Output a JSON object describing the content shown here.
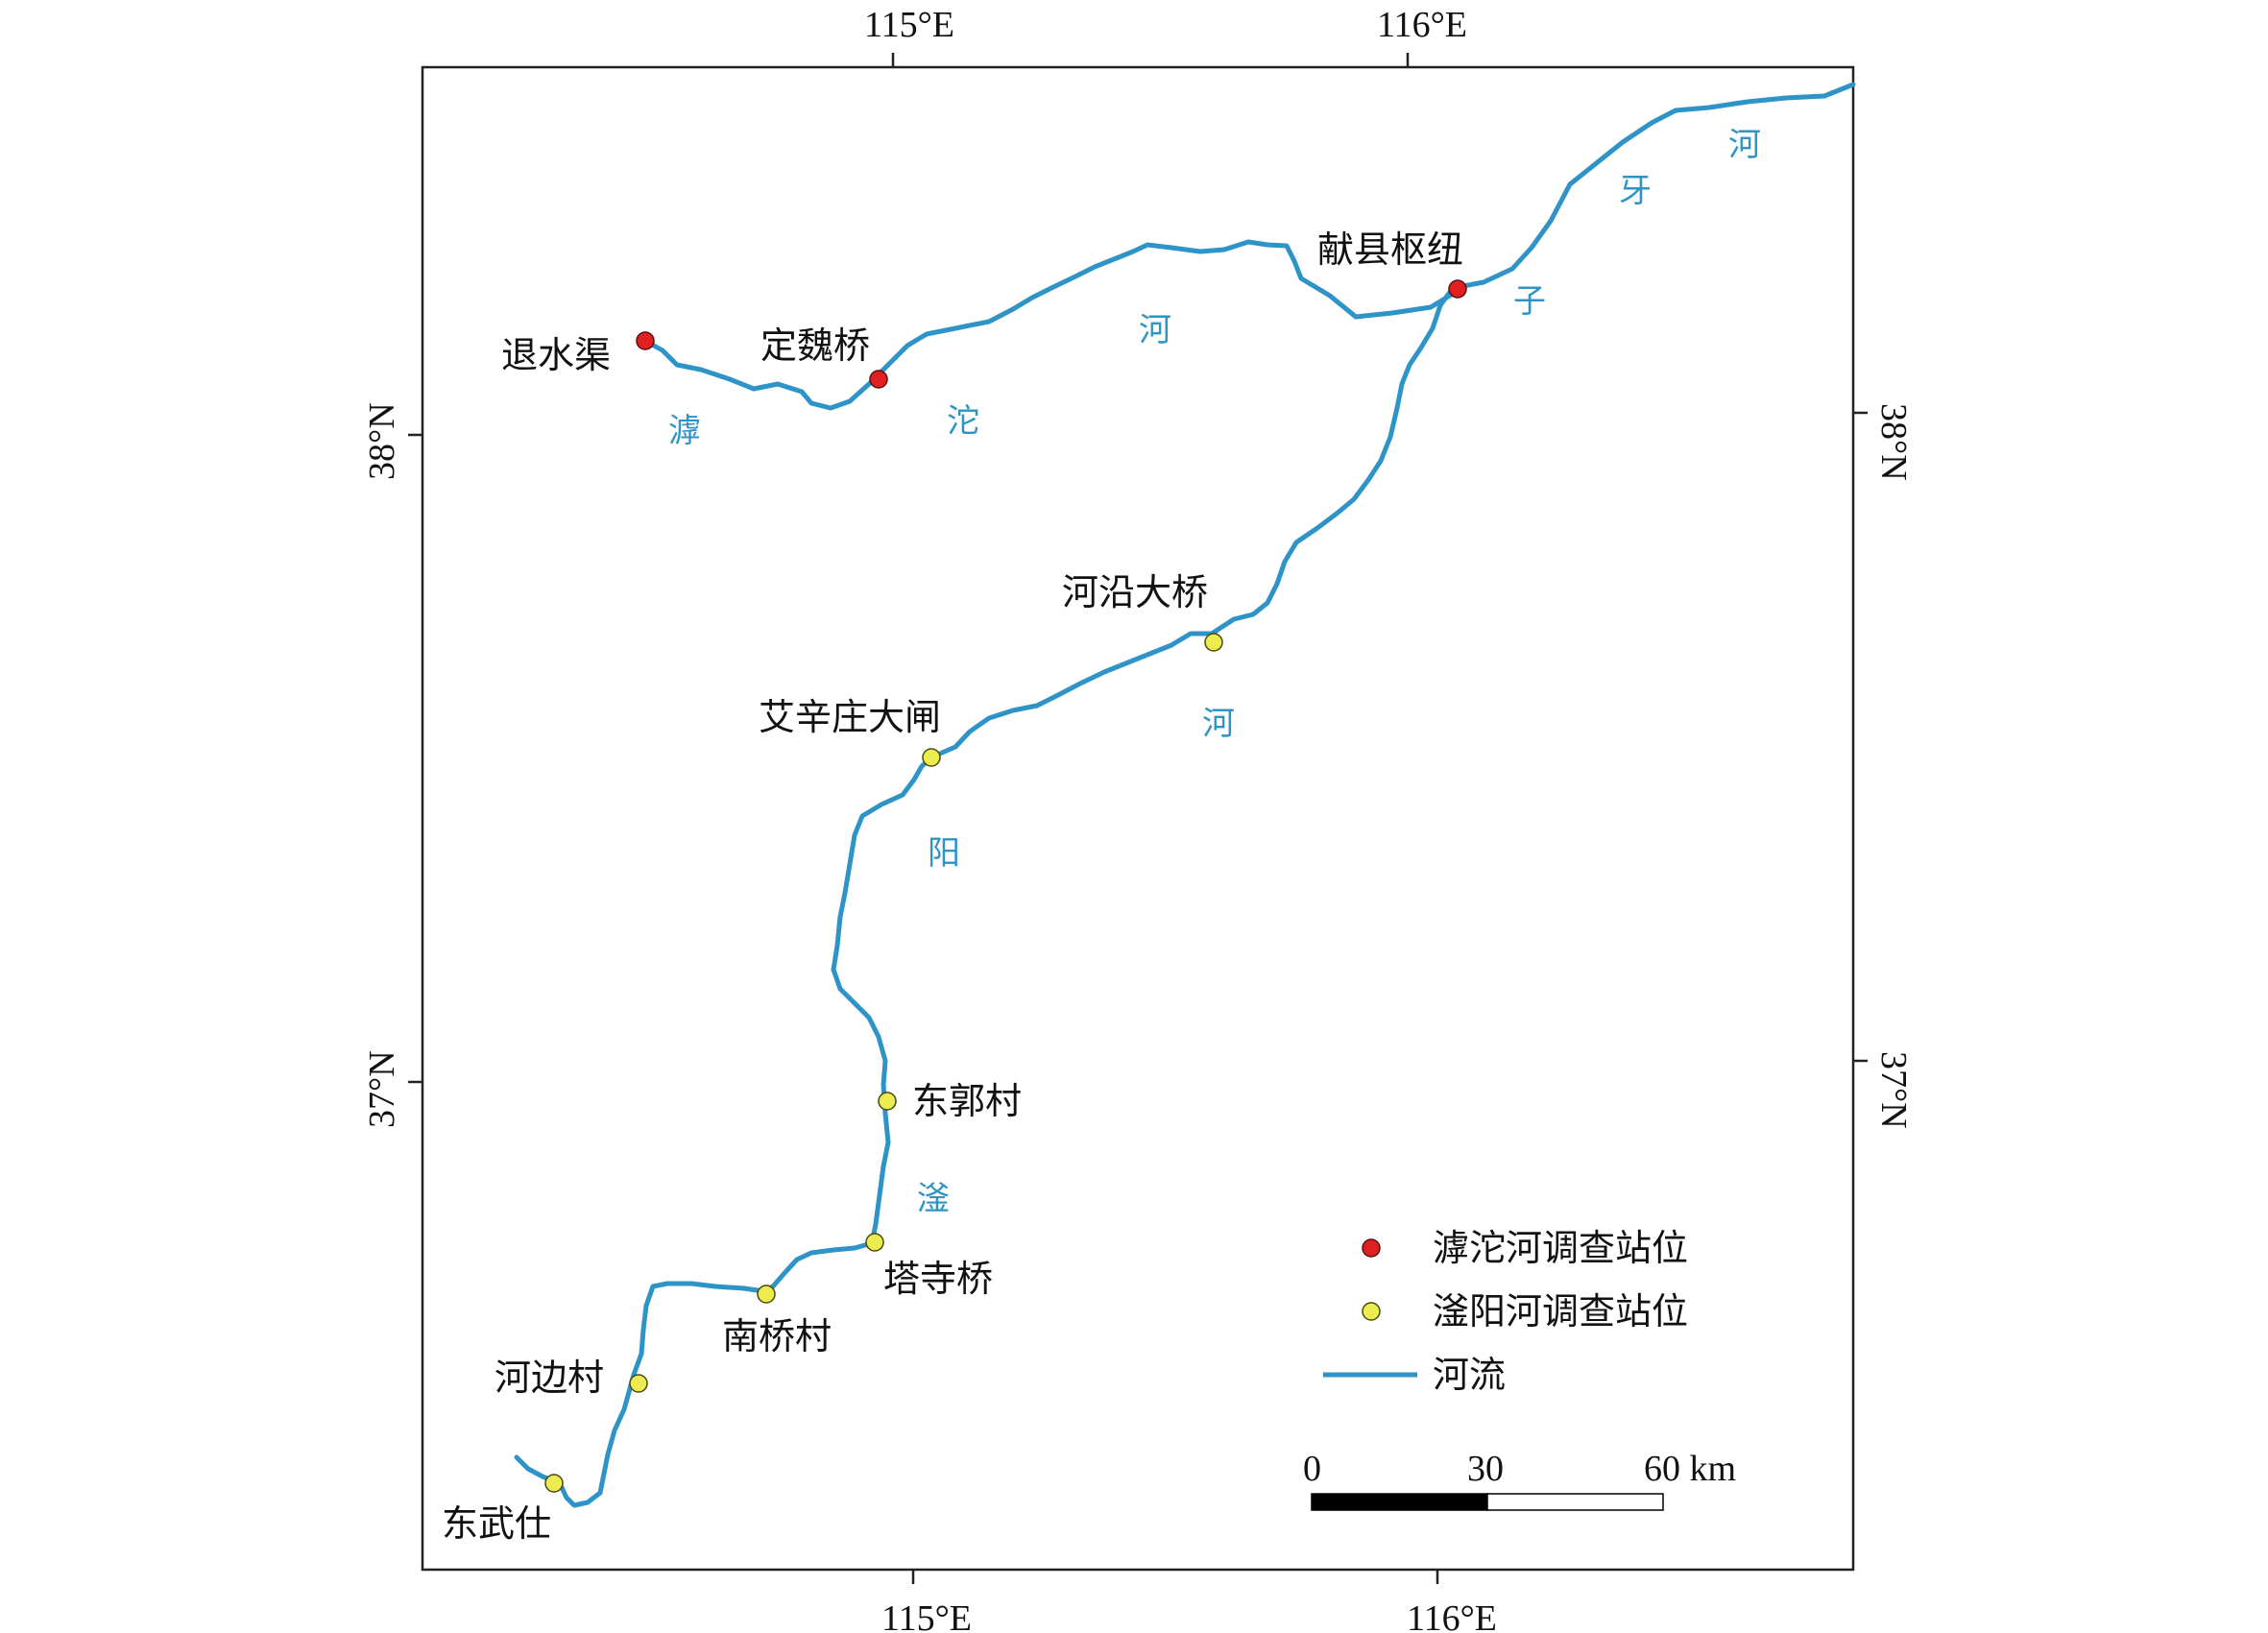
{
  "axes": {
    "lon_top": [
      "115°E",
      "116°E"
    ],
    "lon_bottom": [
      "115°E",
      "116°E"
    ],
    "lat_left": [
      "38°N",
      "37°N"
    ],
    "lat_right": [
      "38°N",
      "37°N"
    ]
  },
  "rivers": {
    "hutuo": [
      "滹",
      "沱",
      "河"
    ],
    "ziya": [
      "子",
      "牙",
      "河"
    ],
    "fuyang": [
      "滏",
      "阳",
      "河"
    ]
  },
  "stations": {
    "tuishuiqu": "退水渠",
    "dingweiqiao": "定魏桥",
    "xianxian": "献县枢纽",
    "heyandaqiao": "河沿大桥",
    "aixinzhuang": "艾辛庄大闸",
    "dongguocun": "东郭村",
    "tasiqiao": "塔寺桥",
    "nanqiaocun": "南桥村",
    "hebiancun": "河边村",
    "dongwushi": "东武仕"
  },
  "legend": {
    "hutuo_station": "滹沱河调查站位",
    "fuyang_station": "滏阳河调查站位",
    "river": "河流",
    "red_color": "#e02020",
    "yellow_color": "#ecec50",
    "river_color": "#2e94c8"
  },
  "scale": {
    "t0": "0",
    "t1": "30",
    "t2": "60 km"
  }
}
